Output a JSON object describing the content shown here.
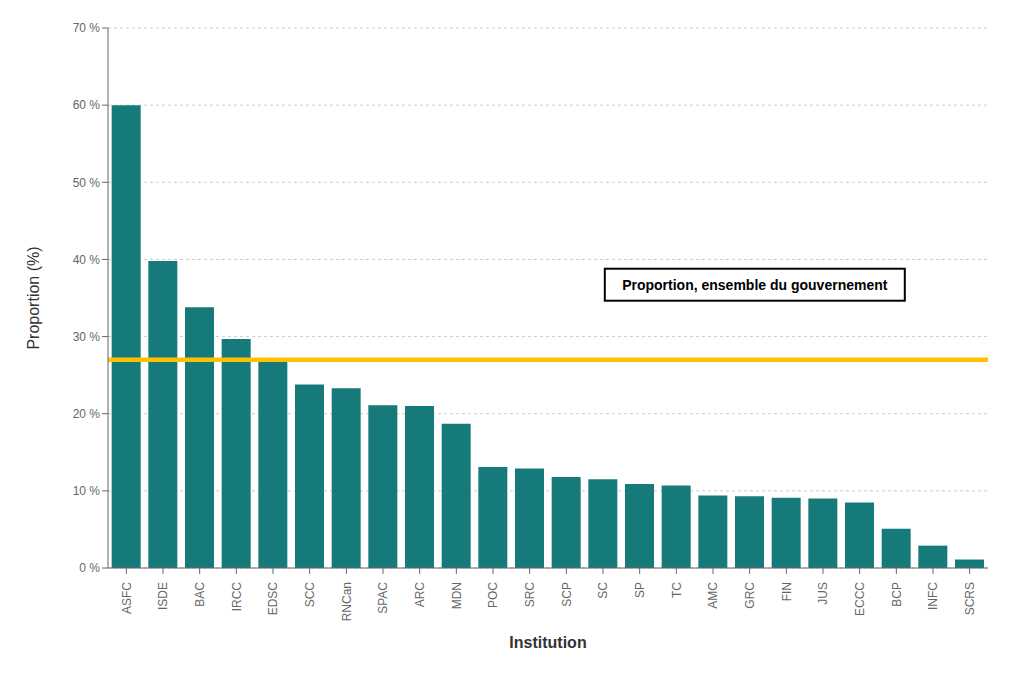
{
  "chart_data": {
    "type": "bar",
    "categories": [
      "ASFC",
      "ISDE",
      "BAC",
      "IRCC",
      "EDSC",
      "SCC",
      "RNCan",
      "SPAC",
      "ARC",
      "MDN",
      "POC",
      "SRC",
      "SCP",
      "SC",
      "SP",
      "TC",
      "AMC",
      "GRC",
      "FIN",
      "JUS",
      "ECCC",
      "BCP",
      "INFC",
      "SCRS"
    ],
    "values": [
      60.0,
      39.8,
      33.8,
      29.7,
      26.7,
      23.8,
      23.3,
      21.1,
      21.0,
      18.7,
      13.1,
      12.9,
      11.8,
      11.5,
      10.9,
      10.7,
      9.4,
      9.3,
      9.1,
      9.0,
      8.5,
      5.1,
      2.9,
      1.1
    ],
    "color": "#177a7a",
    "xlabel": "Institution",
    "ylabel": "Proportion (%)",
    "ylim": [
      0,
      70
    ],
    "yticks": [
      {
        "value": 0,
        "label": "0 %"
      },
      {
        "value": 10,
        "label": "10 %"
      },
      {
        "value": 20,
        "label": "20 %"
      },
      {
        "value": 30,
        "label": "30 %"
      },
      {
        "value": 40,
        "label": "40 %"
      },
      {
        "value": 50,
        "label": "50 %"
      },
      {
        "value": 60,
        "label": "60 %"
      },
      {
        "value": 70,
        "label": "70 %"
      }
    ],
    "grid": true,
    "reference_line": {
      "value": 27.0,
      "label": "Proportion, ensemble du gouvernement",
      "color": "#FFC000"
    }
  }
}
